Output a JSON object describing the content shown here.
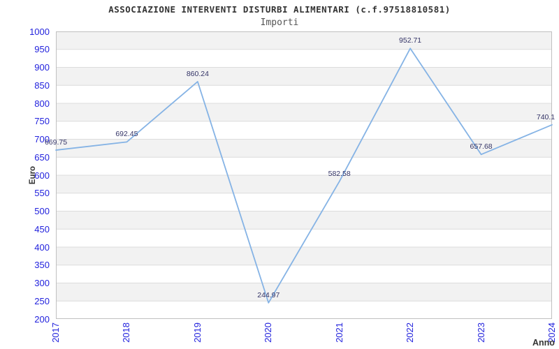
{
  "title": "ASSOCIAZIONE INTERVENTI DISTURBI ALIMENTARI (c.f.97518810581)",
  "subtitle": "Importi",
  "chart_data": {
    "type": "line",
    "x": [
      "2017",
      "2018",
      "2019",
      "2020",
      "2021",
      "2022",
      "2023",
      "2024"
    ],
    "values": [
      669.75,
      692.45,
      860.24,
      244.97,
      582.58,
      952.71,
      657.68,
      740.1
    ],
    "point_labels": [
      "669.75",
      "692.45",
      "860.24",
      "244.97",
      "582.58",
      "952.71",
      "657.68",
      "740.1"
    ],
    "xlabel": "Anno",
    "ylabel": "Euro",
    "ylim": [
      200,
      1000
    ],
    "yticks": [
      200,
      250,
      300,
      350,
      400,
      450,
      500,
      550,
      600,
      650,
      700,
      750,
      800,
      850,
      900,
      950,
      1000
    ],
    "grid": "horizontal lines every 50 with alternating shaded bands",
    "legend": "none",
    "colors": {
      "line": "#85b3e5",
      "tick_labels": "#2222dd",
      "point_labels": "#333366",
      "band": "#f2f2f2",
      "gridline": "#dcdcdc",
      "plot_border": "#c0c0c0",
      "title": "#333333",
      "subtitle": "#555555",
      "axis_titles": "#333333",
      "background": "#ffffff"
    }
  }
}
